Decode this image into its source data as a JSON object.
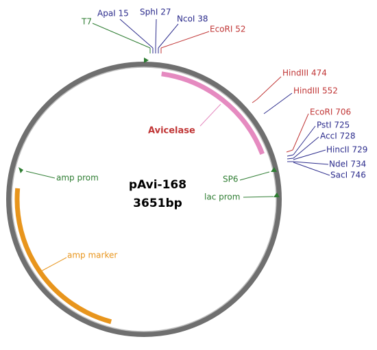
{
  "title": "pAvi-168",
  "size": "3651bp",
  "sites": [
    {
      "label": "T7"
    },
    {
      "label": "ApaI 15"
    },
    {
      "label": "SphI 27"
    },
    {
      "label": "NcoI 38"
    },
    {
      "label": "EcoRI 52"
    },
    {
      "label": "HindIII 474"
    },
    {
      "label": "HindIII 552"
    },
    {
      "label": "EcoRI 706"
    },
    {
      "label": "PstI 725"
    },
    {
      "label": "AccI 728"
    },
    {
      "label": "HincII 729"
    },
    {
      "label": "NdeI 734"
    },
    {
      "label": "SacI 746"
    }
  ],
  "features": [
    {
      "label": "Avicelase"
    },
    {
      "label": "amp prom"
    },
    {
      "label": "SP6"
    },
    {
      "label": "lac prom"
    },
    {
      "label": "amp marker"
    }
  ]
}
